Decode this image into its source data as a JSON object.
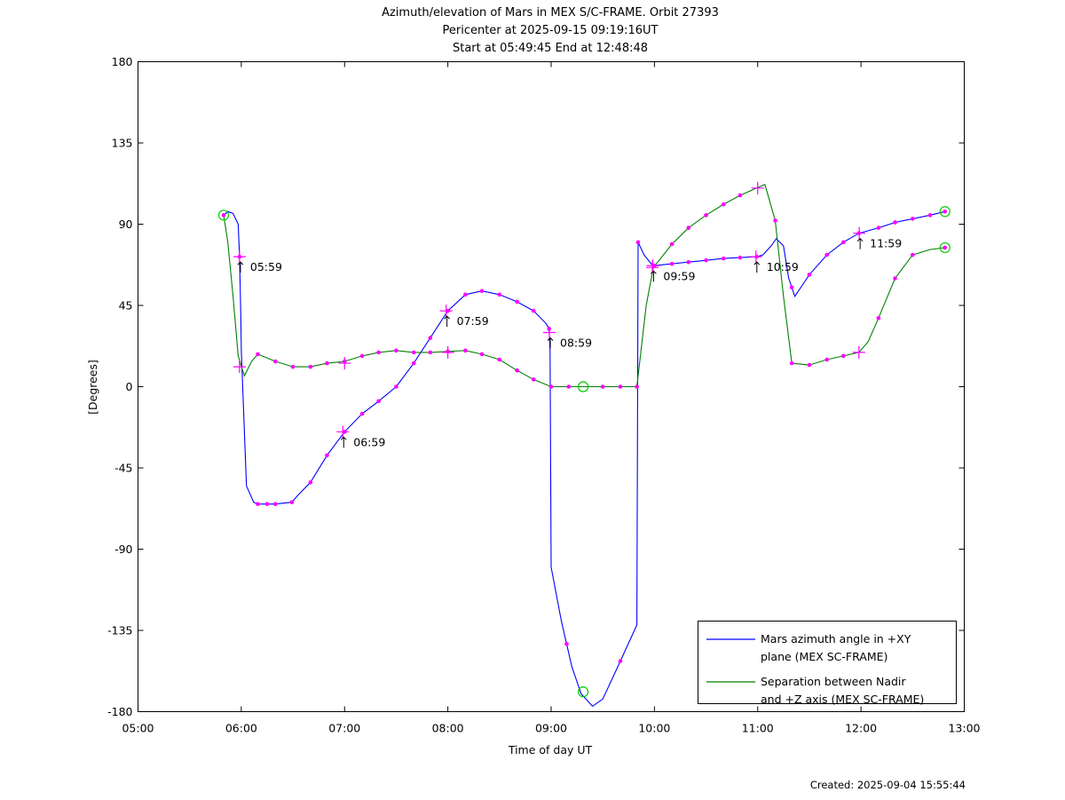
{
  "chart_data": {
    "type": "line",
    "title_lines": [
      "Azimuth/elevation of Mars in MEX S/C-FRAME.  Orbit 27393",
      "Pericenter at 2025-09-15 09:19:16UT",
      "Start at 05:49:45 End at 12:48:48"
    ],
    "xlabel": "Time of day UT",
    "ylabel": "[Degrees]",
    "xlim": [
      5,
      13
    ],
    "ylim": [
      -180,
      180
    ],
    "x_ticks": [
      {
        "v": 5,
        "label": "05:00"
      },
      {
        "v": 6,
        "label": "06:00"
      },
      {
        "v": 7,
        "label": "07:00"
      },
      {
        "v": 8,
        "label": "08:00"
      },
      {
        "v": 9,
        "label": "09:00"
      },
      {
        "v": 10,
        "label": "10:00"
      },
      {
        "v": 11,
        "label": "11:00"
      },
      {
        "v": 12,
        "label": "12:00"
      },
      {
        "v": 13,
        "label": "13:00"
      }
    ],
    "y_ticks": [
      {
        "v": 180,
        "label": "180"
      },
      {
        "v": 135,
        "label": "135"
      },
      {
        "v": 90,
        "label": "90"
      },
      {
        "v": 45,
        "label": "45"
      },
      {
        "v": 0,
        "label": "0"
      },
      {
        "v": -45,
        "label": "-45"
      },
      {
        "v": -90,
        "label": "-90"
      },
      {
        "v": -135,
        "label": "-135"
      },
      {
        "v": -180,
        "label": "-180"
      }
    ],
    "grid": false,
    "legend_position": "bottom-right",
    "series": [
      {
        "name_lines": [
          "Mars azimuth angle in +XY",
          "plane (MEX SC-FRAME)"
        ],
        "color": "#0000ff",
        "points": [
          [
            5.829,
            95
          ],
          [
            5.87,
            97
          ],
          [
            5.92,
            96
          ],
          [
            5.97,
            90
          ],
          [
            5.983,
            72
          ],
          [
            5.995,
            40
          ],
          [
            6.0,
            20
          ],
          [
            6.05,
            -55
          ],
          [
            6.12,
            -64
          ],
          [
            6.16,
            -65
          ],
          [
            6.33,
            -65
          ],
          [
            6.49,
            -64
          ],
          [
            6.55,
            -60
          ],
          [
            6.67,
            -53
          ],
          [
            6.83,
            -38
          ],
          [
            7.0,
            -25
          ],
          [
            7.17,
            -15
          ],
          [
            7.33,
            -8
          ],
          [
            7.5,
            0
          ],
          [
            7.67,
            13
          ],
          [
            7.83,
            27
          ],
          [
            8.0,
            42
          ],
          [
            8.17,
            51
          ],
          [
            8.33,
            53
          ],
          [
            8.5,
            51
          ],
          [
            8.67,
            47
          ],
          [
            8.83,
            42
          ],
          [
            8.95,
            35
          ],
          [
            8.98,
            32
          ],
          [
            8.99,
            20
          ],
          [
            9.0,
            -100
          ],
          [
            9.05,
            -115
          ],
          [
            9.1,
            -130
          ],
          [
            9.2,
            -155
          ],
          [
            9.29,
            -170
          ],
          [
            9.4,
            -177
          ],
          [
            9.5,
            -173
          ],
          [
            9.67,
            -152
          ],
          [
            9.83,
            -132
          ],
          [
            9.842,
            80
          ],
          [
            9.9,
            73
          ],
          [
            9.985,
            67
          ],
          [
            10.16,
            68
          ],
          [
            10.33,
            69
          ],
          [
            10.5,
            70
          ],
          [
            10.67,
            71
          ],
          [
            10.83,
            71.5
          ],
          [
            10.99,
            72
          ],
          [
            11.05,
            73
          ],
          [
            11.13,
            78
          ],
          [
            11.18,
            82
          ],
          [
            11.25,
            78
          ],
          [
            11.3,
            60
          ],
          [
            11.36,
            50
          ],
          [
            11.5,
            62
          ],
          [
            11.67,
            73
          ],
          [
            11.83,
            80
          ],
          [
            11.98,
            85
          ],
          [
            12.17,
            88
          ],
          [
            12.33,
            91
          ],
          [
            12.5,
            93
          ],
          [
            12.67,
            95
          ],
          [
            12.813,
            97
          ]
        ],
        "markers": [
          5.829,
          5.983,
          6.16,
          6.25,
          6.33,
          6.49,
          6.67,
          6.83,
          7.0,
          7.17,
          7.33,
          7.5,
          7.67,
          7.83,
          8.0,
          8.17,
          8.33,
          8.5,
          8.67,
          8.83,
          8.98,
          9.15,
          9.67,
          9.842,
          10.0,
          10.17,
          10.33,
          10.5,
          10.67,
          10.83,
          10.99,
          11.33,
          11.5,
          11.67,
          11.83,
          11.98,
          12.17,
          12.33,
          12.5,
          12.67,
          12.813
        ]
      },
      {
        "name_lines": [
          "Separation between Nadir",
          "and +Z axis (MEX SC-FRAME)"
        ],
        "color": "#008000",
        "points": [
          [
            5.829,
            95
          ],
          [
            5.87,
            80
          ],
          [
            5.92,
            50
          ],
          [
            5.97,
            17
          ],
          [
            6.03,
            6
          ],
          [
            6.1,
            14
          ],
          [
            6.16,
            18
          ],
          [
            6.33,
            14
          ],
          [
            6.5,
            11
          ],
          [
            6.67,
            11
          ],
          [
            6.83,
            13
          ],
          [
            7.0,
            14
          ],
          [
            7.17,
            17
          ],
          [
            7.33,
            19
          ],
          [
            7.5,
            20
          ],
          [
            7.67,
            19
          ],
          [
            7.83,
            19
          ],
          [
            8.0,
            19.5
          ],
          [
            8.17,
            20
          ],
          [
            8.33,
            18
          ],
          [
            8.5,
            15
          ],
          [
            8.67,
            9
          ],
          [
            8.83,
            4
          ],
          [
            9.0,
            0
          ],
          [
            9.31,
            0
          ],
          [
            9.5,
            0
          ],
          [
            9.67,
            0
          ],
          [
            9.83,
            0
          ],
          [
            9.92,
            45
          ],
          [
            9.99,
            66
          ],
          [
            10.17,
            79
          ],
          [
            10.33,
            88
          ],
          [
            10.5,
            95
          ],
          [
            10.67,
            101
          ],
          [
            10.83,
            106
          ],
          [
            10.99,
            110
          ],
          [
            11.07,
            112
          ],
          [
            11.17,
            92
          ],
          [
            11.25,
            50
          ],
          [
            11.33,
            13
          ],
          [
            11.5,
            12
          ],
          [
            11.67,
            15
          ],
          [
            11.83,
            17
          ],
          [
            11.98,
            19
          ],
          [
            12.07,
            25
          ],
          [
            12.17,
            38
          ],
          [
            12.33,
            60
          ],
          [
            12.5,
            73
          ],
          [
            12.67,
            76
          ],
          [
            12.813,
            77
          ]
        ],
        "markers": [
          6.16,
          6.33,
          6.5,
          6.67,
          6.83,
          7.0,
          7.17,
          7.33,
          7.5,
          7.67,
          7.83,
          8.0,
          8.17,
          8.33,
          8.5,
          8.67,
          8.83,
          9.0,
          9.17,
          9.5,
          9.67,
          9.83,
          10.17,
          10.33,
          10.5,
          10.67,
          10.83,
          11.17,
          11.33,
          11.5,
          11.67,
          11.83,
          12.17,
          12.33,
          12.5,
          12.813
        ]
      }
    ],
    "hour_marks": [
      {
        "x": 5.983,
        "y": 72,
        "label": "05:59"
      },
      {
        "x": 6.983,
        "y": -25,
        "label": "06:59"
      },
      {
        "x": 7.983,
        "y": 42,
        "label": "07:59"
      },
      {
        "x": 8.983,
        "y": 30,
        "label": "08:59"
      },
      {
        "x": 9.983,
        "y": 67,
        "label": "09:59"
      },
      {
        "x": 10.983,
        "y": 72,
        "label": "10:59"
      },
      {
        "x": 11.983,
        "y": 85,
        "label": "11:59"
      }
    ],
    "extra_crosses": [
      {
        "x": 5.983,
        "y": 11
      },
      {
        "x": 7.0,
        "y": 13
      },
      {
        "x": 8.0,
        "y": 19
      },
      {
        "x": 9.98,
        "y": 66
      },
      {
        "x": 11.0,
        "y": 110
      },
      {
        "x": 11.98,
        "y": 19
      }
    ],
    "circles": [
      {
        "x": 5.829,
        "y": 95,
        "color": "#00cc00"
      },
      {
        "x": 9.31,
        "y": 0,
        "color": "#00cc00"
      },
      {
        "x": 9.31,
        "y": -169,
        "color": "#00cc00"
      },
      {
        "x": 12.813,
        "y": 97,
        "color": "#00cc00"
      },
      {
        "x": 12.813,
        "y": 77,
        "color": "#00cc00"
      }
    ],
    "marker_color": "#ff00ff"
  },
  "footer": {
    "created": "Created: 2025-09-04 15:55:44"
  }
}
